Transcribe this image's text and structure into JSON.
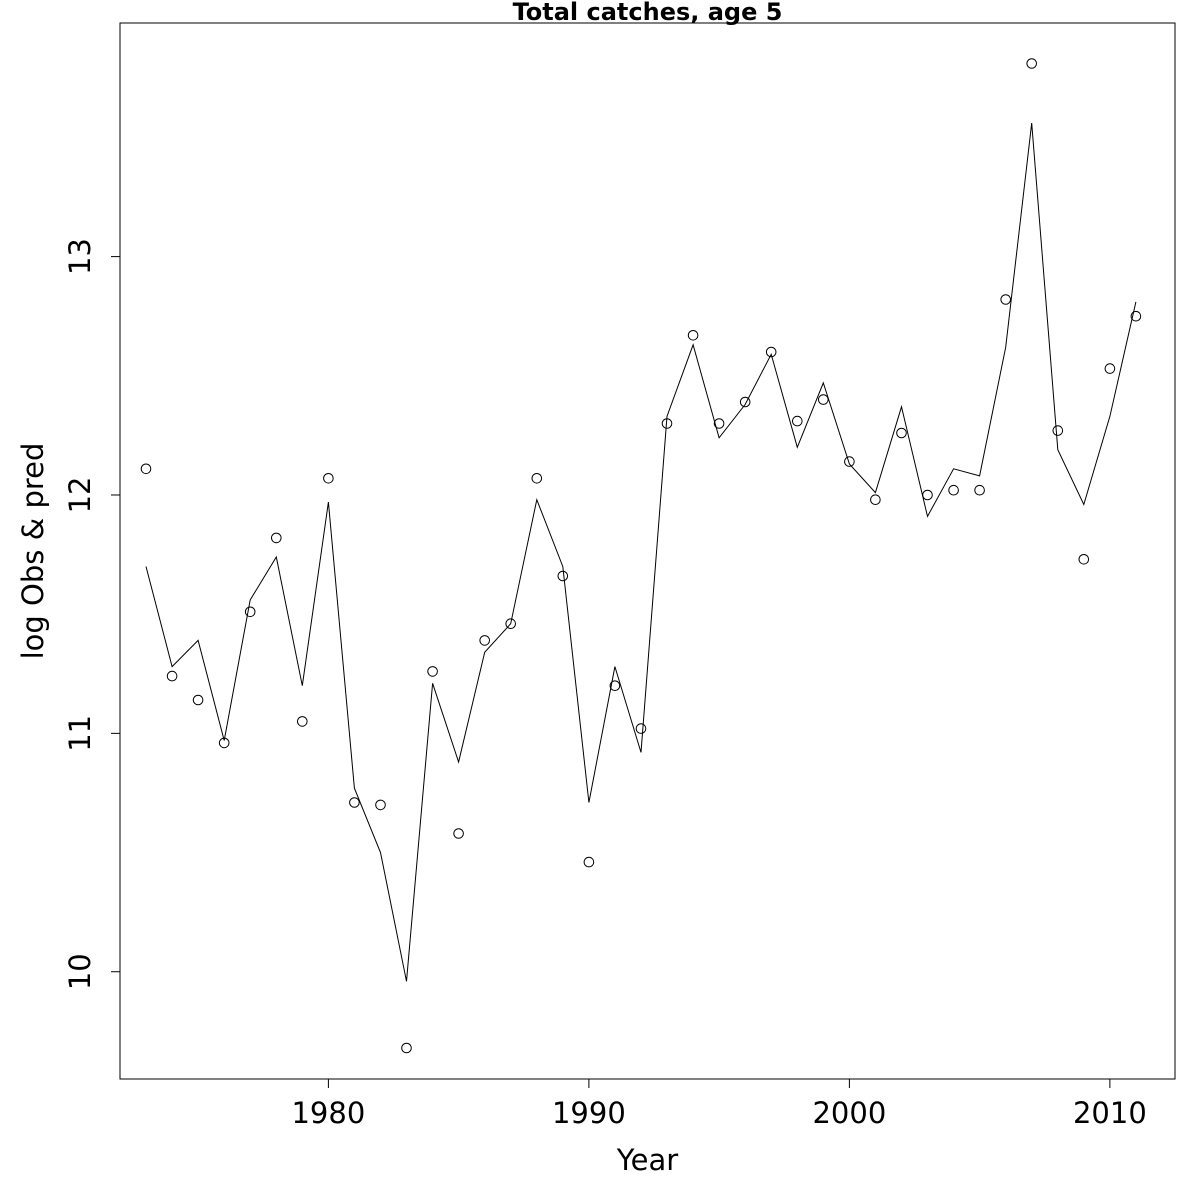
{
  "chart_data": {
    "type": "line",
    "title": "Total catches, age 5",
    "xlabel": "Year",
    "ylabel": "log Obs & pred",
    "xlim": [
      1972,
      2012.5
    ],
    "ylim": [
      9.55,
      13.98
    ],
    "x_ticks": [
      1980,
      1990,
      2000,
      2010
    ],
    "y_ticks": [
      10,
      11,
      12,
      13
    ],
    "x_tick_labels": [
      "1980",
      "1990",
      "2000",
      "2010"
    ],
    "y_tick_labels": [
      "10",
      "11",
      "12",
      "13"
    ],
    "grid": false,
    "legend": "none",
    "series": [
      {
        "kind": "points",
        "marker": "open-circle",
        "x": [
          1973,
          1974,
          1975,
          1976,
          1977,
          1978,
          1979,
          1980,
          1981,
          1982,
          1983,
          1984,
          1985,
          1986,
          1987,
          1988,
          1989,
          1990,
          1991,
          1992,
          1993,
          1994,
          1995,
          1996,
          1997,
          1998,
          1999,
          2000,
          2001,
          2002,
          2003,
          2004,
          2005,
          2006,
          2007,
          2008,
          2009,
          2010,
          2011
        ],
        "values": [
          12.11,
          11.24,
          11.14,
          10.96,
          11.51,
          11.82,
          11.05,
          12.07,
          10.71,
          10.7,
          9.68,
          11.26,
          10.58,
          11.39,
          11.46,
          12.07,
          11.66,
          10.46,
          11.2,
          11.02,
          12.3,
          12.67,
          12.3,
          12.39,
          12.6,
          12.31,
          12.4,
          12.14,
          11.98,
          12.26,
          12.0,
          12.02,
          12.02,
          12.82,
          13.81,
          12.27,
          11.73,
          12.53,
          12.75
        ]
      },
      {
        "kind": "line",
        "x": [
          1973,
          1974,
          1975,
          1976,
          1977,
          1978,
          1979,
          1980,
          1981,
          1982,
          1983,
          1984,
          1985,
          1986,
          1987,
          1988,
          1989,
          1990,
          1991,
          1992,
          1993,
          1994,
          1995,
          1996,
          1997,
          1998,
          1999,
          2000,
          2001,
          2002,
          2003,
          2004,
          2005,
          2006,
          2007,
          2008,
          2009,
          2010,
          2011
        ],
        "values": [
          11.7,
          11.28,
          11.39,
          10.97,
          11.56,
          11.74,
          11.2,
          11.97,
          10.77,
          10.5,
          9.96,
          11.21,
          10.88,
          11.34,
          11.46,
          11.98,
          11.7,
          10.71,
          11.28,
          10.92,
          12.33,
          12.63,
          12.24,
          12.38,
          12.59,
          12.2,
          12.47,
          12.13,
          12.01,
          12.37,
          11.91,
          12.11,
          12.08,
          12.62,
          13.56,
          12.19,
          11.96,
          12.33,
          12.81
        ]
      }
    ]
  }
}
